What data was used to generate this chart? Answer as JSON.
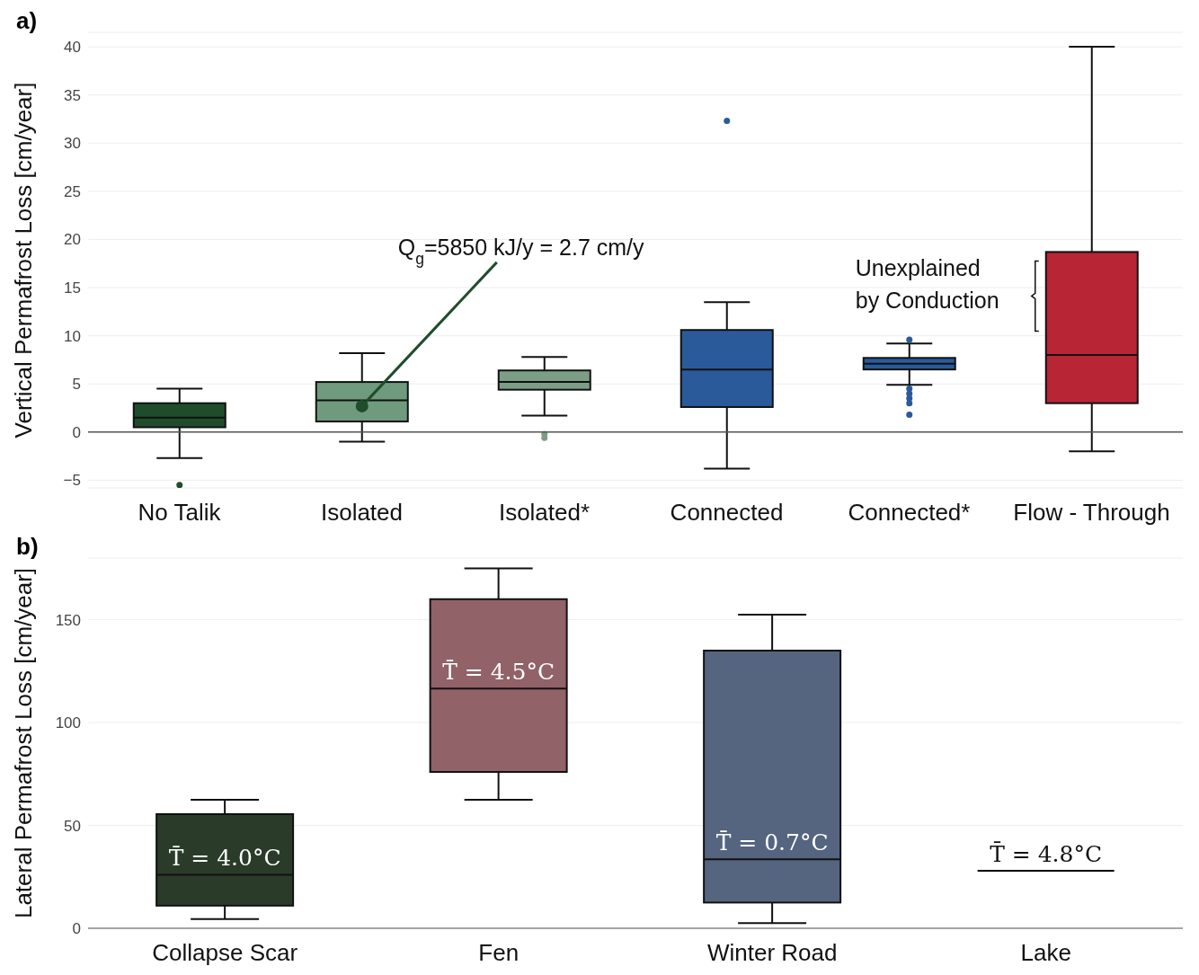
{
  "chart_data": [
    {
      "type": "box",
      "title": "a)",
      "ylabel": "Vertical Permafrost Loss [cm/year]",
      "categories": [
        "No Talik",
        "Isolated",
        "Isolated*",
        "Connected",
        "Connected*",
        "Flow - Through"
      ],
      "boxes": [
        {
          "low": -2.7,
          "q1": 0.5,
          "median": 1.5,
          "q3": 3.0,
          "high": 4.5,
          "outliers": [
            -5.5
          ]
        },
        {
          "low": -1.0,
          "q1": 1.1,
          "median": 3.3,
          "q3": 5.2,
          "high": 8.2
        },
        {
          "low": 1.7,
          "q1": 4.4,
          "median": 5.2,
          "q3": 6.4,
          "high": 7.8,
          "outliers": [
            -0.2,
            -0.6
          ]
        },
        {
          "low": -3.8,
          "q1": 2.6,
          "median": 6.5,
          "q3": 10.6,
          "high": 13.5,
          "outliers": [
            32.3
          ]
        },
        {
          "low": 4.9,
          "q1": 6.5,
          "median": 7.1,
          "q3": 7.7,
          "high": 9.2,
          "outliers": [
            9.6,
            4.5,
            4.0,
            3.5,
            3.0,
            1.8
          ]
        },
        {
          "low": -2.0,
          "q1": 3.0,
          "median": 8.0,
          "q3": 18.7,
          "high": 40.0
        }
      ],
      "colors": [
        "#1f4d2b",
        "#6f9a7d",
        "#7c9e86",
        "#2a5a9a",
        "#2a5a9a",
        "#b82535"
      ],
      "ylim": [
        -5.8,
        41.5
      ],
      "yticks": [
        {
          "value": -5,
          "label": "−5"
        },
        0,
        5,
        10,
        15,
        20,
        25,
        30,
        35,
        40
      ],
      "grid": "y",
      "ref_lines": [
        {
          "axis": "y",
          "value": 0
        }
      ],
      "annotations": [
        {
          "text": "Q$_{g}$=5850 kJ/y = 2.7 cm/y",
          "x": "Isolated",
          "y": 2.7
        },
        "Unexplained by Conduction"
      ]
    },
    {
      "type": "box",
      "title": "b)",
      "ylabel": "Lateral Permafrost Loss [cm/year]",
      "categories": [
        "Collapse Scar",
        "Fen",
        "Winter Road",
        "Lake"
      ],
      "boxes": [
        {
          "low": 4.5,
          "q1": 11,
          "median": 26,
          "q3": 55.5,
          "high": 62.5
        },
        {
          "low": 62.5,
          "q1": 76,
          "median": 116.5,
          "q3": 160,
          "high": 175
        },
        {
          "low": 2.5,
          "q1": 12.5,
          "median": 33.5,
          "q3": 135,
          "high": 152.5
        },
        {
          "low": 28,
          "q1": 28,
          "median": 28,
          "q3": 28,
          "high": 28
        }
      ],
      "colors": [
        "#2a3b2a",
        "#916268",
        "#55647f",
        "#000000"
      ],
      "ylim": [
        0,
        180
      ],
      "yticks": [
        0,
        50,
        100,
        150
      ],
      "grid": "y",
      "annotations": [
        "T̄ = 4.0°C",
        "T̄ = 4.5°C",
        "T̄ = 0.7°C",
        "T̄ = 4.8°C"
      ]
    }
  ]
}
